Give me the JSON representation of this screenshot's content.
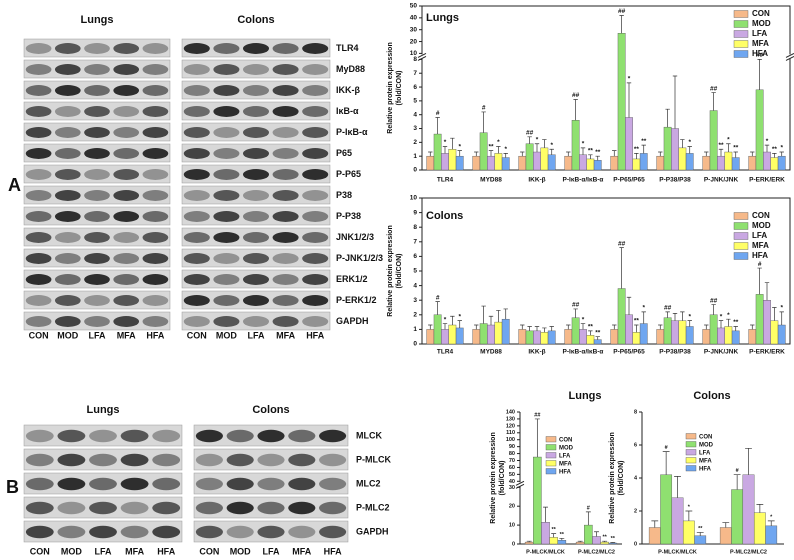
{
  "panel_labels": [
    "A",
    "B"
  ],
  "blots_a": {
    "titles": [
      "Lungs",
      "Colons"
    ],
    "proteins": [
      "TLR4",
      "MyD88",
      "IKK-β",
      "IκB-α",
      "P-IκB-α",
      "P65",
      "P-P65",
      "P38",
      "P-P38",
      "JNK1/2/3",
      "P-JNK1/2/3",
      "ERK1/2",
      "P-ERK1/2",
      "GAPDH"
    ],
    "groups": [
      "CON",
      "MOD",
      "LFA",
      "MFA",
      "HFA"
    ]
  },
  "blots_b": {
    "titles": [
      "Lungs",
      "Colons"
    ],
    "proteins": [
      "MLCK",
      "P-MLCK",
      "MLC2",
      "P-MLC2",
      "GAPDH"
    ],
    "groups": [
      "CON",
      "MOD",
      "LFA",
      "MFA",
      "HFA"
    ]
  },
  "chart_data": [
    {
      "type": "bar",
      "title": "Lungs",
      "ylabel": [
        "Relative protein expression",
        "(fold/CON)"
      ],
      "categories": [
        "TLR4",
        "MYD88",
        "IKK-β",
        "P-IκB-α/IκB-α",
        "P-P65/P65",
        "P-P38/P38",
        "P-JNK/JNK",
        "P-ERK/ERK"
      ],
      "ylim": [
        0,
        50
      ],
      "ybreak": [
        8,
        10
      ],
      "yticks": [
        0,
        1,
        2,
        3,
        4,
        5,
        6,
        7,
        8,
        10,
        20,
        30,
        40,
        50
      ],
      "series": [
        {
          "name": "CON",
          "color": "#f6b98a",
          "values": [
            1,
            1,
            1,
            1,
            1,
            1,
            1,
            1
          ],
          "errors": [
            0.3,
            0.3,
            0.3,
            0.3,
            0.4,
            0.3,
            0.3,
            0.3
          ],
          "annotations": [
            null,
            null,
            null,
            null,
            null,
            null,
            null,
            null
          ]
        },
        {
          "name": "MOD",
          "color": "#8fe070",
          "values": [
            2.6,
            2.7,
            1.9,
            3.6,
            27,
            3.1,
            4.3,
            5.8
          ],
          "errors": [
            1.2,
            1.5,
            0.5,
            1.5,
            15,
            1.3,
            1.3,
            2.2
          ],
          "annotations": [
            "#",
            "#",
            "##",
            "##",
            "##",
            null,
            "##",
            "##"
          ]
        },
        {
          "name": "LFA",
          "color": "#c9a8e2",
          "values": [
            1.2,
            1.0,
            1.3,
            1.1,
            3.8,
            3.0,
            1.0,
            1.3
          ],
          "errors": [
            0.5,
            0.4,
            0.6,
            0.5,
            2.5,
            3.8,
            0.5,
            0.5
          ],
          "annotations": [
            "*",
            "**",
            "*",
            "*",
            "*",
            null,
            "**",
            "*"
          ]
        },
        {
          "name": "MFA",
          "color": "#ffff66",
          "values": [
            1.5,
            1.2,
            1.6,
            0.8,
            0.8,
            1.6,
            1.3,
            0.9
          ],
          "errors": [
            0.8,
            0.5,
            0.6,
            0.3,
            0.4,
            0.6,
            0.6,
            0.3
          ],
          "annotations": [
            null,
            "*",
            null,
            "**",
            "**",
            null,
            "*",
            "**"
          ]
        },
        {
          "name": "HFA",
          "color": "#6fa6f0",
          "values": [
            1.0,
            0.9,
            1.1,
            0.7,
            1.2,
            1.2,
            0.9,
            1.0
          ],
          "errors": [
            0.4,
            0.3,
            0.4,
            0.3,
            0.6,
            0.5,
            0.4,
            0.3
          ],
          "annotations": [
            "*",
            "*",
            "*",
            "**",
            "**",
            "*",
            "**",
            "*"
          ]
        }
      ]
    },
    {
      "type": "bar",
      "title": "Colons",
      "ylabel": [
        "Relative protein expression",
        "(fold/CON)"
      ],
      "categories": [
        "TLR4",
        "MYD88",
        "IKK-β",
        "P-IκB-α/IκB-α",
        "P-P65/P65",
        "P-P38/P38",
        "P-JNK/JNK",
        "P-ERK/ERK"
      ],
      "ylim": [
        0,
        10
      ],
      "yticks": [
        0,
        1,
        2,
        3,
        4,
        5,
        6,
        7,
        8,
        9,
        10
      ],
      "series": [
        {
          "name": "CON",
          "color": "#f6b98a",
          "values": [
            1,
            1,
            1,
            1,
            1,
            1,
            1,
            1
          ],
          "errors": [
            0.3,
            0.3,
            0.3,
            0.3,
            0.3,
            0.3,
            0.3,
            0.3
          ],
          "annotations": [
            null,
            null,
            null,
            null,
            null,
            null,
            null,
            null
          ]
        },
        {
          "name": "MOD",
          "color": "#8fe070",
          "values": [
            2.0,
            1.4,
            0.9,
            1.8,
            3.8,
            1.8,
            2.0,
            3.4
          ],
          "errors": [
            0.9,
            1.2,
            0.3,
            0.6,
            2.8,
            0.4,
            0.7,
            1.8
          ],
          "annotations": [
            "#",
            null,
            null,
            "##",
            "##",
            "##",
            "##",
            "#"
          ]
        },
        {
          "name": "LFA",
          "color": "#c9a8e2",
          "values": [
            1.0,
            1.3,
            0.9,
            1.0,
            2.0,
            1.6,
            1.1,
            3.0
          ],
          "errors": [
            0.4,
            0.6,
            0.3,
            0.4,
            1.2,
            0.5,
            0.5,
            1.2
          ],
          "annotations": [
            "*",
            null,
            null,
            "*",
            null,
            null,
            "*",
            null
          ]
        },
        {
          "name": "MFA",
          "color": "#ffff66",
          "values": [
            1.3,
            1.5,
            0.8,
            0.6,
            0.8,
            1.6,
            1.2,
            1.6
          ],
          "errors": [
            0.6,
            0.8,
            0.3,
            0.3,
            0.5,
            0.6,
            0.5,
            0.9
          ],
          "annotations": [
            null,
            null,
            null,
            "**",
            "**",
            null,
            "*",
            null
          ]
        },
        {
          "name": "HFA",
          "color": "#6fa6f0",
          "values": [
            1.1,
            1.7,
            0.9,
            0.3,
            1.4,
            1.2,
            0.9,
            1.3
          ],
          "errors": [
            0.5,
            0.7,
            0.3,
            0.2,
            0.8,
            0.4,
            0.3,
            0.9
          ],
          "annotations": [
            "*",
            null,
            null,
            "**",
            "*",
            "*",
            "**",
            "*"
          ]
        }
      ]
    },
    {
      "type": "bar",
      "title": "Lungs",
      "ylabel": [
        "Relative protein expression",
        "(fold/CON)"
      ],
      "categories": [
        "P-MLCK/MLCK",
        "P-MLC2/MLC2"
      ],
      "ylim": [
        0,
        140
      ],
      "ybreak": [
        30,
        40
      ],
      "yticks": [
        0,
        10,
        20,
        30,
        40,
        50,
        60,
        70,
        80,
        90,
        100,
        110,
        120,
        130,
        140
      ],
      "series": [
        {
          "name": "CON",
          "color": "#f6b98a",
          "values": [
            1,
            1
          ],
          "errors": [
            0.5,
            0.5
          ],
          "annotations": [
            null,
            null
          ]
        },
        {
          "name": "MOD",
          "color": "#8fe070",
          "values": [
            75,
            10
          ],
          "errors": [
            55,
            7
          ],
          "annotations": [
            "##",
            "#"
          ]
        },
        {
          "name": "LFA",
          "color": "#c9a8e2",
          "values": [
            11.5,
            4
          ],
          "errors": [
            8,
            2.5
          ],
          "annotations": [
            null,
            null
          ]
        },
        {
          "name": "MFA",
          "color": "#ffff66",
          "values": [
            3.5,
            1
          ],
          "errors": [
            2,
            0.5
          ],
          "annotations": [
            "**",
            "**"
          ]
        },
        {
          "name": "HFA",
          "color": "#6fa6f0",
          "values": [
            2,
            0.5
          ],
          "errors": [
            1,
            0.3
          ],
          "annotations": [
            "**",
            "**"
          ]
        }
      ]
    },
    {
      "type": "bar",
      "title": "Colons",
      "ylabel": [
        "Relative protein expression",
        "(fold/CON)"
      ],
      "categories": [
        "P-MLCK/MLCK",
        "P-MLC2/MLC2"
      ],
      "ylim": [
        0,
        8
      ],
      "yticks": [
        0,
        2,
        4,
        6,
        8
      ],
      "series": [
        {
          "name": "CON",
          "color": "#f6b98a",
          "values": [
            1,
            1
          ],
          "errors": [
            0.4,
            0.3
          ],
          "annotations": [
            null,
            null
          ]
        },
        {
          "name": "MOD",
          "color": "#8fe070",
          "values": [
            4.2,
            3.3
          ],
          "errors": [
            1.4,
            0.9
          ],
          "annotations": [
            "#",
            "#"
          ]
        },
        {
          "name": "LFA",
          "color": "#c9a8e2",
          "values": [
            2.8,
            4.2
          ],
          "errors": [
            1.3,
            1.6
          ],
          "annotations": [
            null,
            null
          ]
        },
        {
          "name": "MFA",
          "color": "#ffff66",
          "values": [
            1.4,
            1.9
          ],
          "errors": [
            0.6,
            0.5
          ],
          "annotations": [
            "*",
            null
          ]
        },
        {
          "name": "HFA",
          "color": "#6fa6f0",
          "values": [
            0.5,
            1.1
          ],
          "errors": [
            0.2,
            0.3
          ],
          "annotations": [
            "**",
            "*"
          ]
        }
      ]
    }
  ]
}
